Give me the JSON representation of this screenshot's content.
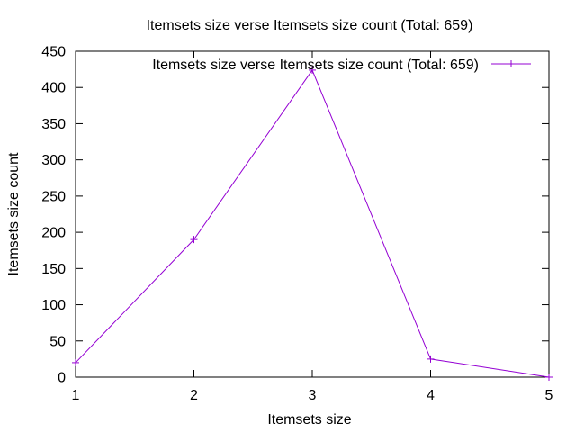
{
  "chart_data": {
    "type": "line",
    "title": "Itemsets size verse Itemsets size count (Total: 659)",
    "xlabel": "Itemsets size",
    "ylabel": "Itemsets size count",
    "xlim": [
      1,
      5
    ],
    "ylim": [
      0,
      450
    ],
    "xticks": [
      "1",
      "2",
      "3",
      "4",
      "5"
    ],
    "yticks": [
      "0",
      "50",
      "100",
      "150",
      "200",
      "250",
      "300",
      "350",
      "400",
      "450"
    ],
    "grid": false,
    "legend_position": "top-right",
    "series": [
      {
        "name": "Itemsets size verse Itemsets size count (Total: 659)",
        "color": "#9400d3",
        "marker": "plus",
        "x": [
          1,
          2,
          3,
          4,
          5
        ],
        "values": [
          20,
          190,
          424,
          25,
          0
        ]
      }
    ]
  }
}
